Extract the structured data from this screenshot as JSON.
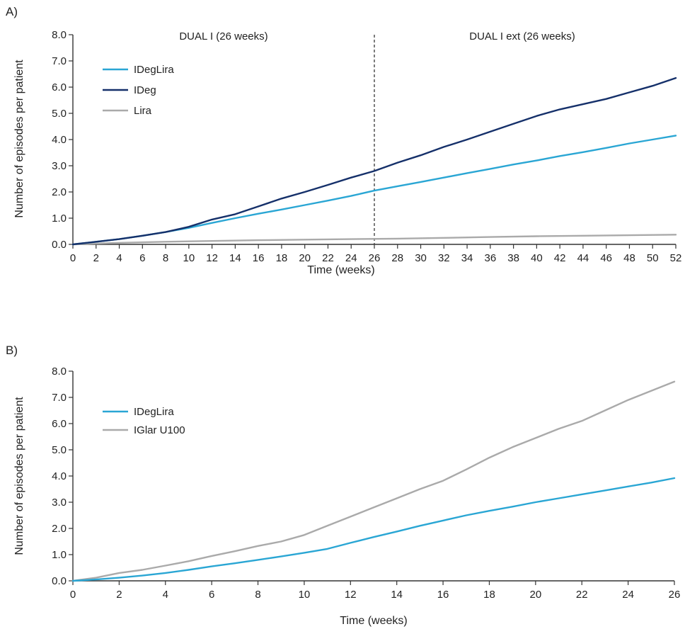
{
  "colors": {
    "ideglira": "#2aa6d4",
    "ideg": "#15306a",
    "lira": "#aaaaaa",
    "iglar": "#aaaaaa",
    "axis": "#333333",
    "divider": "#444444"
  },
  "chart_data": [
    {
      "type": "line",
      "panel_label": "A)",
      "xlabel": "Time (weeks)",
      "ylabel": "Number of episodes per patient",
      "xlim": [
        0,
        52
      ],
      "ylim": [
        0,
        8
      ],
      "x_ticks": [
        0,
        2,
        4,
        6,
        8,
        10,
        12,
        14,
        16,
        18,
        20,
        22,
        24,
        26,
        28,
        30,
        32,
        34,
        36,
        38,
        40,
        42,
        44,
        46,
        48,
        50,
        52
      ],
      "y_ticks": [
        "0.0",
        "1.0",
        "2.0",
        "3.0",
        "4.0",
        "5.0",
        "6.0",
        "7.0",
        "8.0"
      ],
      "grid": false,
      "legend_position": "top-left",
      "divider_x": 26,
      "region_labels": [
        "DUAL I (26 weeks)",
        "DUAL I ext (26 weeks)"
      ],
      "series": [
        {
          "name": "IDegLira",
          "color": "#2aa6d4",
          "x": [
            0,
            2,
            4,
            6,
            8,
            10,
            12,
            14,
            16,
            18,
            20,
            22,
            24,
            26,
            28,
            30,
            32,
            34,
            36,
            38,
            40,
            42,
            44,
            46,
            48,
            50,
            52
          ],
          "y": [
            0,
            0.1,
            0.2,
            0.33,
            0.47,
            0.63,
            0.82,
            1.0,
            1.17,
            1.33,
            1.5,
            1.67,
            1.85,
            2.05,
            2.22,
            2.38,
            2.55,
            2.72,
            2.88,
            3.05,
            3.2,
            3.37,
            3.52,
            3.68,
            3.85,
            4.0,
            4.15
          ]
        },
        {
          "name": "IDeg",
          "color": "#15306a",
          "x": [
            0,
            2,
            4,
            6,
            8,
            10,
            12,
            14,
            16,
            18,
            20,
            22,
            24,
            26,
            28,
            30,
            32,
            34,
            36,
            38,
            40,
            42,
            44,
            46,
            48,
            50,
            52
          ],
          "y": [
            0,
            0.1,
            0.2,
            0.33,
            0.47,
            0.67,
            0.95,
            1.15,
            1.45,
            1.75,
            2.0,
            2.27,
            2.55,
            2.8,
            3.12,
            3.4,
            3.72,
            4.0,
            4.3,
            4.6,
            4.9,
            5.15,
            5.35,
            5.55,
            5.8,
            6.05,
            6.35
          ]
        },
        {
          "name": "Lira",
          "color": "#aaaaaa",
          "x": [
            0,
            4,
            8,
            12,
            16,
            20,
            24,
            28,
            32,
            36,
            40,
            44,
            48,
            52
          ],
          "y": [
            0,
            0.06,
            0.1,
            0.13,
            0.16,
            0.18,
            0.2,
            0.22,
            0.25,
            0.28,
            0.31,
            0.33,
            0.35,
            0.37
          ]
        }
      ]
    },
    {
      "type": "line",
      "panel_label": "B)",
      "xlabel": "Time (weeks)",
      "ylabel": "Number of episodes per patient",
      "xlim": [
        0,
        26
      ],
      "ylim": [
        0,
        8
      ],
      "x_ticks": [
        0,
        2,
        4,
        6,
        8,
        10,
        12,
        14,
        16,
        18,
        20,
        22,
        24,
        26
      ],
      "y_ticks": [
        "0.0",
        "1.0",
        "2.0",
        "3.0",
        "4.0",
        "5.0",
        "6.0",
        "7.0",
        "8.0"
      ],
      "grid": false,
      "legend_position": "top-left",
      "series": [
        {
          "name": "IDegLira",
          "color": "#2aa6d4",
          "x": [
            0,
            1,
            2,
            3,
            4,
            5,
            6,
            7,
            8,
            9,
            10,
            11,
            12,
            13,
            14,
            15,
            16,
            17,
            18,
            19,
            20,
            21,
            22,
            23,
            24,
            25,
            26
          ],
          "y": [
            0,
            0.05,
            0.12,
            0.2,
            0.3,
            0.42,
            0.55,
            0.67,
            0.8,
            0.93,
            1.07,
            1.22,
            1.45,
            1.67,
            1.88,
            2.1,
            2.3,
            2.5,
            2.67,
            2.83,
            3.0,
            3.15,
            3.3,
            3.45,
            3.6,
            3.75,
            3.92
          ]
        },
        {
          "name": "IGlar U100",
          "color": "#aaaaaa",
          "x": [
            0,
            1,
            2,
            3,
            4,
            5,
            6,
            7,
            8,
            9,
            10,
            11,
            12,
            13,
            14,
            15,
            16,
            17,
            18,
            19,
            20,
            21,
            22,
            23,
            24,
            25,
            26
          ],
          "y": [
            0,
            0.12,
            0.3,
            0.42,
            0.58,
            0.75,
            0.95,
            1.13,
            1.33,
            1.5,
            1.75,
            2.1,
            2.45,
            2.8,
            3.15,
            3.5,
            3.82,
            4.25,
            4.7,
            5.1,
            5.45,
            5.8,
            6.1,
            6.5,
            6.9,
            7.25,
            7.6
          ]
        }
      ]
    }
  ]
}
